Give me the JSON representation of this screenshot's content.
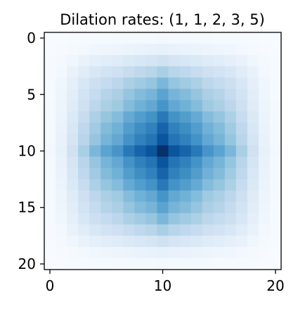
{
  "chart_data": {
    "type": "heatmap",
    "title": "Dilation rates: (1, 1, 2, 3, 5)",
    "xlabel": "",
    "ylabel": "",
    "colormap": "Blues",
    "grid": false,
    "x_ticks": [
      0,
      10,
      20
    ],
    "y_ticks": [
      0,
      5,
      10,
      15,
      20
    ],
    "x_range": [
      -0.5,
      20.5
    ],
    "y_range": [
      -0.5,
      20.5
    ],
    "y_inverted": true,
    "profile": [
      0.02,
      0.08,
      0.2,
      0.34,
      0.46,
      0.55,
      0.61,
      0.72,
      0.8,
      0.86,
      1.0,
      0.86,
      0.8,
      0.72,
      0.61,
      0.55,
      0.46,
      0.34,
      0.2,
      0.08,
      0.02
    ]
  }
}
